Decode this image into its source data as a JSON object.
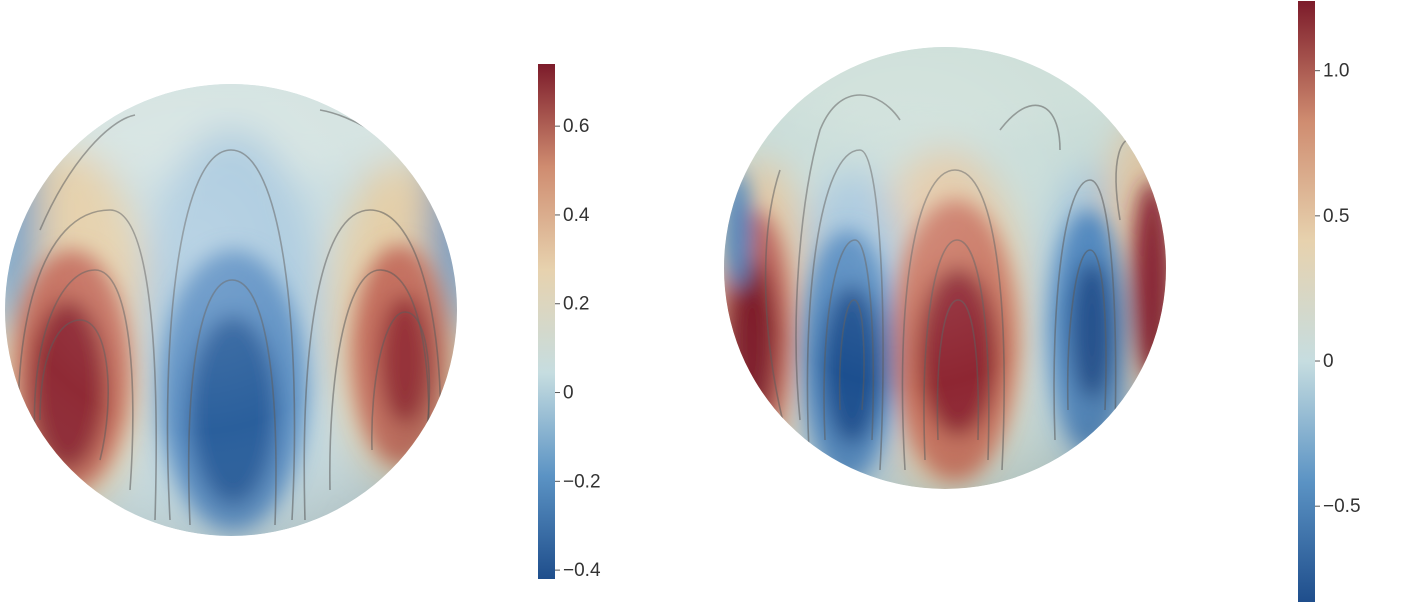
{
  "colormap": {
    "name": "diverging red-blue",
    "stops": [
      "#1f4e8c",
      "#5b93c4",
      "#c6dde0",
      "#e7d2ae",
      "#cf8c70",
      "#7c1b2a"
    ]
  },
  "panels": [
    {
      "colorbar": {
        "min": -0.42,
        "max": 0.74,
        "ticks": [
          {
            "value": 0.6,
            "label": "0.6"
          },
          {
            "value": 0.4,
            "label": "0.4"
          },
          {
            "value": 0.2,
            "label": "0.2"
          },
          {
            "value": 0,
            "label": "0"
          },
          {
            "value": -0.2,
            "label": "−0.2"
          },
          {
            "value": -0.4,
            "label": "−0.4"
          }
        ]
      }
    },
    {
      "colorbar": {
        "min": -0.83,
        "max": 1.24,
        "ticks": [
          {
            "value": 1.0,
            "label": "1.0"
          },
          {
            "value": 0.5,
            "label": "0.5"
          },
          {
            "value": 0,
            "label": "0"
          },
          {
            "value": -0.5,
            "label": "−0.5"
          }
        ]
      }
    }
  ]
}
